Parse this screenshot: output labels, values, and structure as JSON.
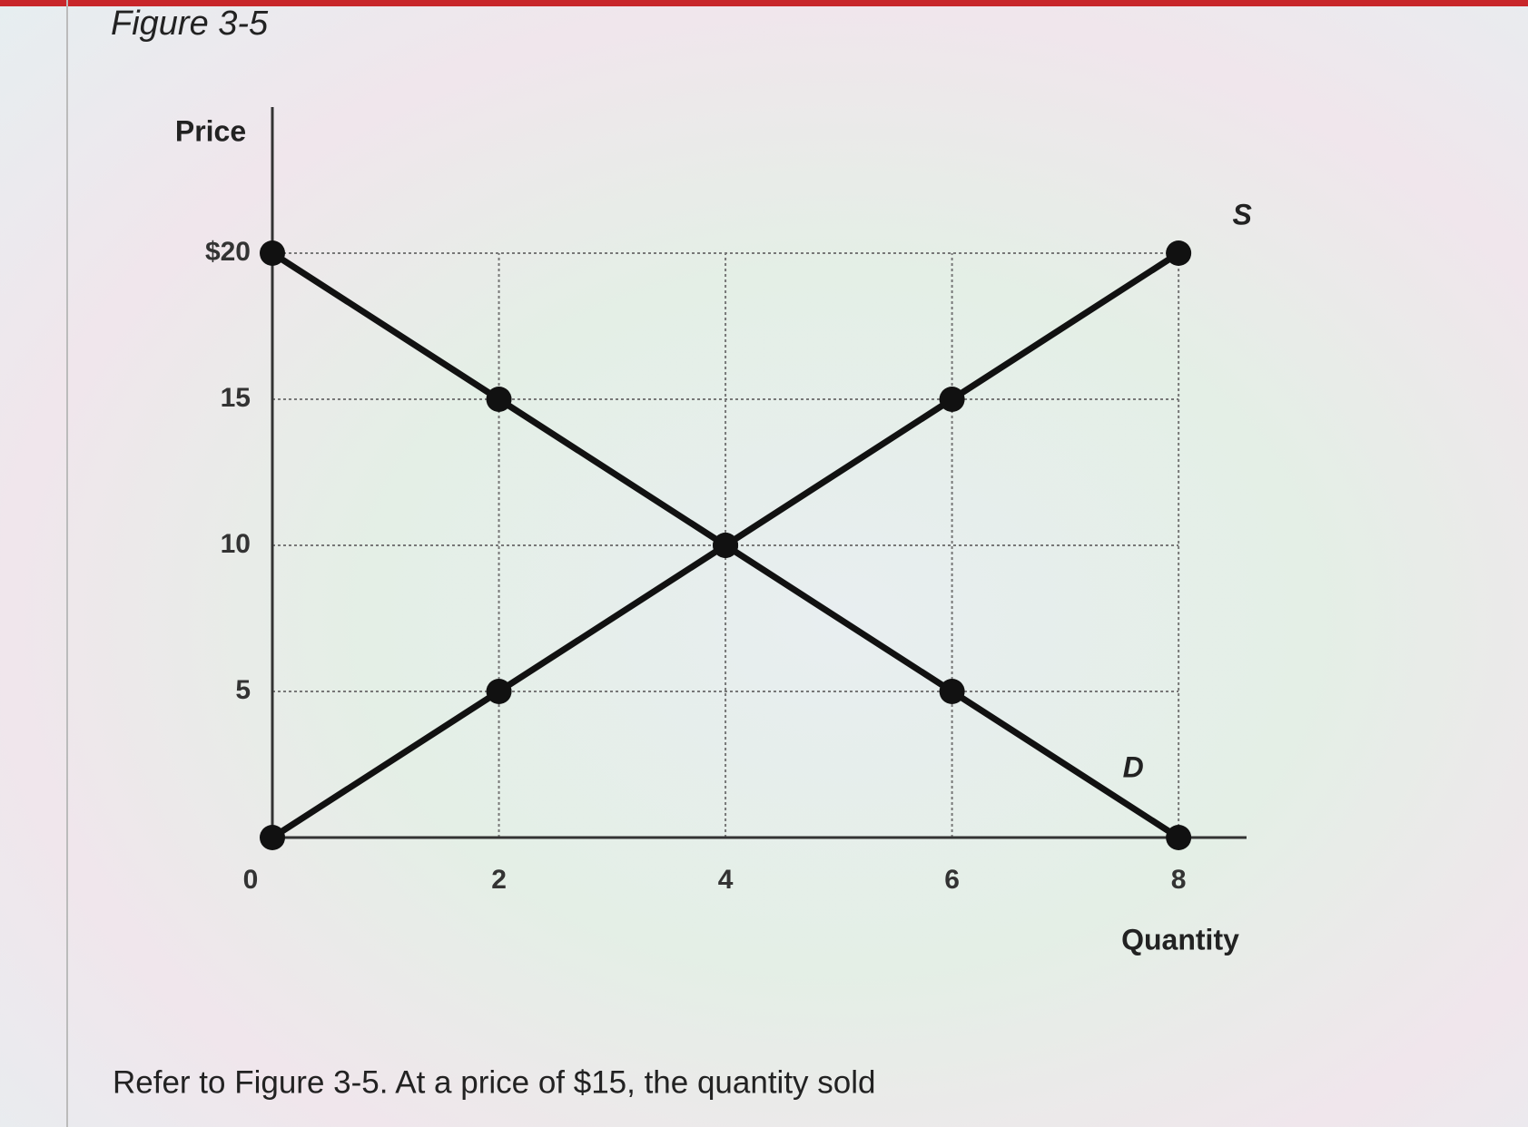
{
  "chart_data": {
    "type": "line",
    "title": "Figure 3-5",
    "caption": "Refer to Figure 3-5. At a price of $15, the quantity sold",
    "y_label": "Price",
    "x_label": "Quantity",
    "x": [
      0,
      2,
      4,
      6,
      8
    ],
    "series": [
      {
        "name": "D",
        "color": "#111111",
        "values": [
          20,
          15,
          10,
          5,
          0
        ]
      },
      {
        "name": "S",
        "color": "#111111",
        "values": [
          0,
          5,
          10,
          15,
          20
        ]
      }
    ],
    "xlim": [
      0,
      8.6
    ],
    "ylim": [
      0,
      25
    ],
    "xticks": [
      0,
      2,
      4,
      6,
      8
    ],
    "yticks": [
      5,
      10,
      15,
      {
        "value": 20,
        "label": "$20"
      }
    ],
    "grid": true
  }
}
